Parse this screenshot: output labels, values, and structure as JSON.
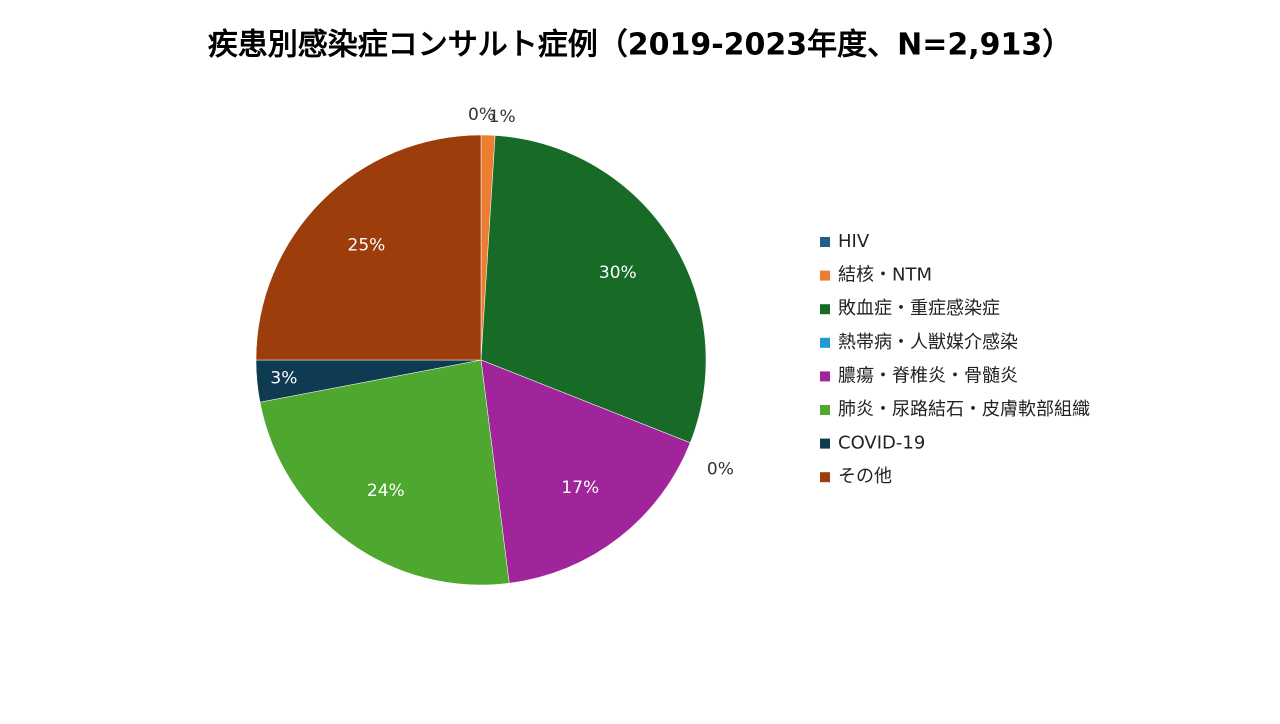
{
  "chart_data": {
    "type": "pie",
    "title": "疾患別感染症コンサルト症例（2019-2023年度、N=2,913）",
    "categories": [
      "HIV",
      "結核・NTM",
      "敗血症・重症感染症",
      "熱帯病・人獣媒介感染",
      "膿瘍・脊椎炎・骨髄炎",
      "肺炎・尿路結石・皮膚軟部組織",
      "COVID-19",
      "その他"
    ],
    "values": [
      0,
      1,
      30,
      0,
      17,
      24,
      3,
      25
    ],
    "value_labels": [
      "0%",
      "1%",
      "30%",
      "0%",
      "17%",
      "24%",
      "3%",
      "25%"
    ],
    "colors": [
      "#1f5f8b",
      "#ed7d31",
      "#176b27",
      "#1e9ad6",
      "#a0259a",
      "#4ea72e",
      "#0e3a52",
      "#9c3d0b"
    ],
    "legend": "right"
  }
}
